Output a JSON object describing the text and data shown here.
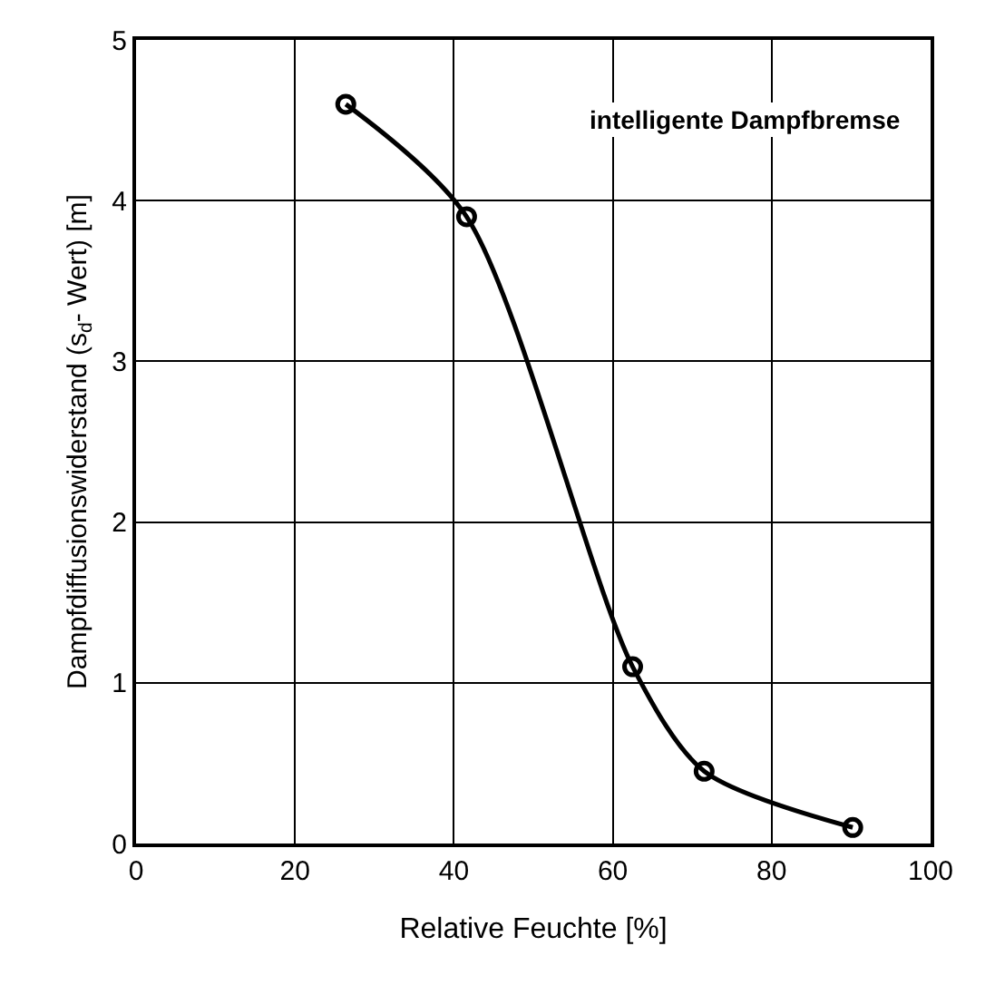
{
  "chart_data": {
    "type": "line",
    "xlabel": "Relative Feuchte [%]",
    "ylabel": "Dampfdiffusionswiderstand (s$_{d}$- Wert) [m]",
    "annotations": [
      "intelligente Dampfbremse"
    ],
    "x": [
      26.4,
      41.6,
      62.5,
      71.5,
      90.2
    ],
    "series": [
      {
        "color": "#000000",
        "values": [
          4.6,
          3.9,
          1.1,
          0.45,
          0.1
        ]
      }
    ],
    "xlim": [
      0,
      100
    ],
    "xticks": [
      0,
      20,
      40,
      60,
      80,
      100
    ],
    "ylim": [
      0,
      5
    ],
    "yticks": [
      0,
      1,
      2,
      3,
      4,
      5
    ],
    "grid": true,
    "marker": "circle",
    "line_style": "solid"
  }
}
